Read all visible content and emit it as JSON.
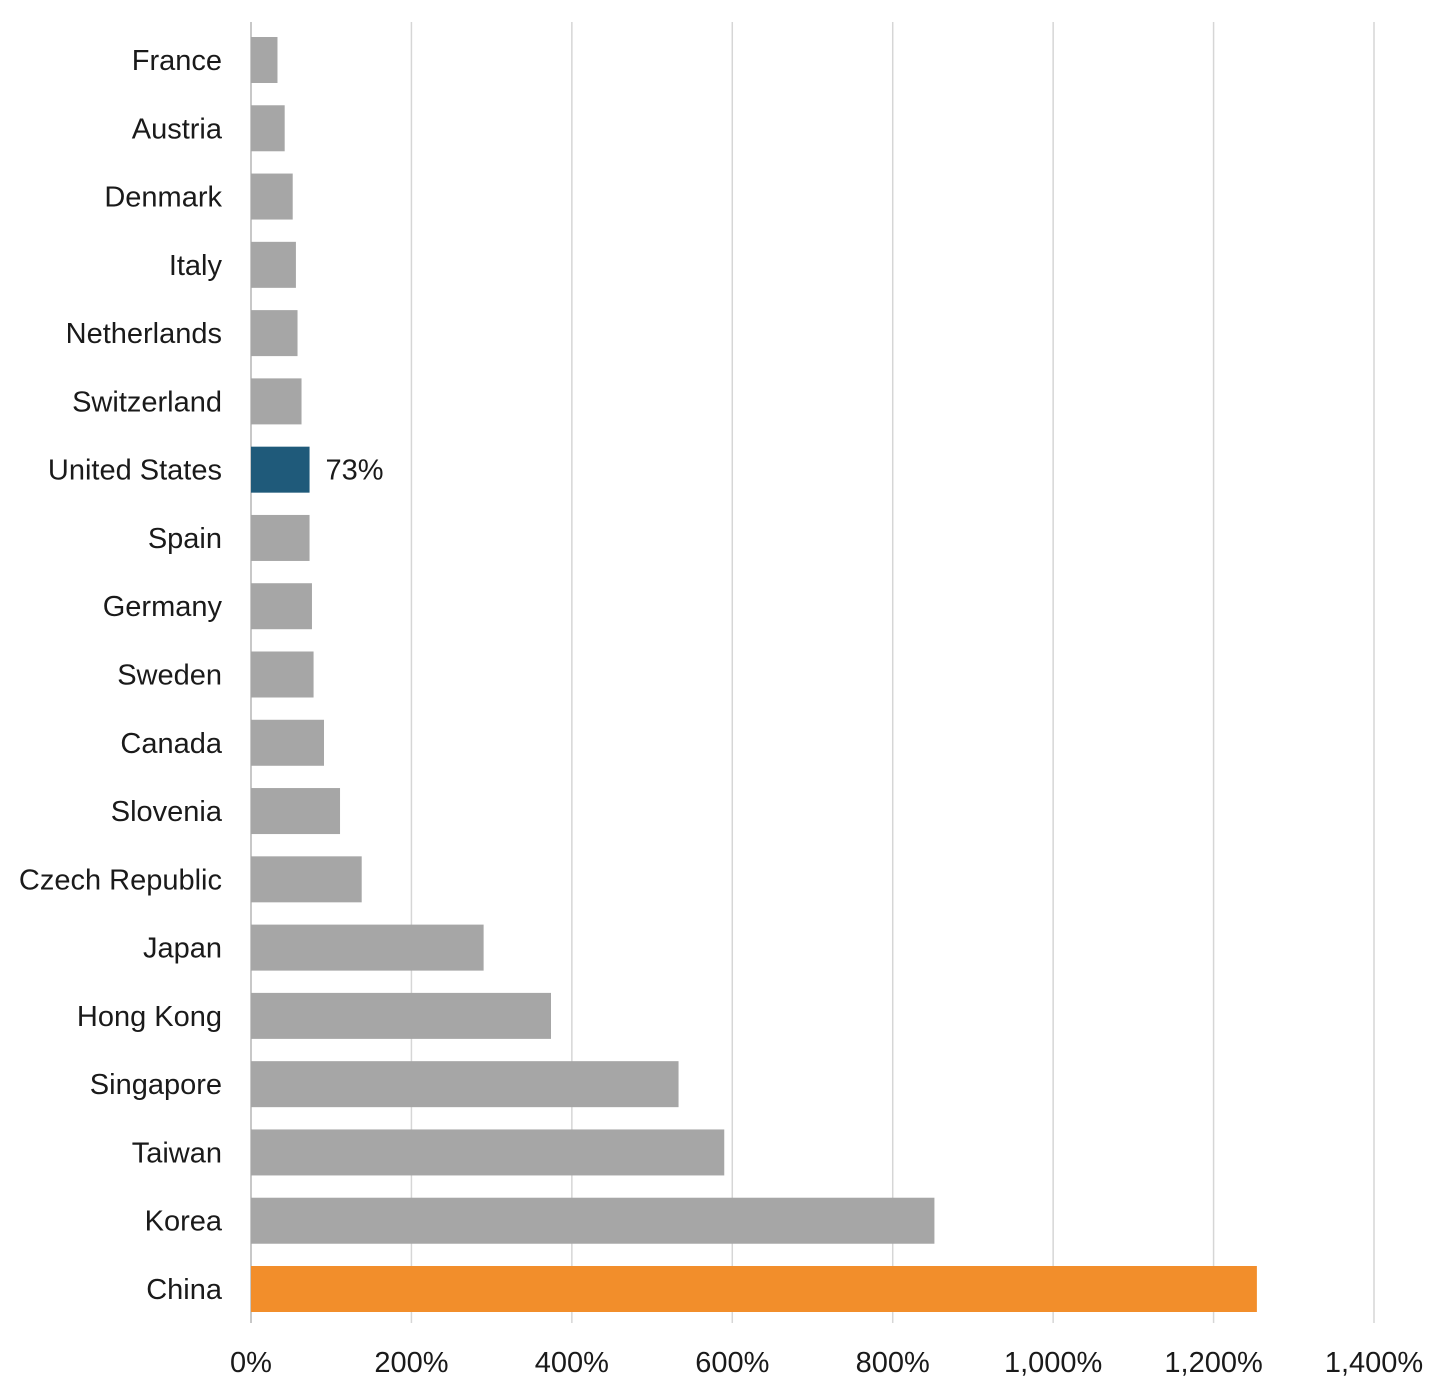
{
  "chart_data": {
    "type": "bar",
    "orientation": "horizontal",
    "title": "",
    "xlabel": "",
    "ylabel": "",
    "categories": [
      "France",
      "Austria",
      "Denmark",
      "Italy",
      "Netherlands",
      "Switzerland",
      "United States",
      "Spain",
      "Germany",
      "Sweden",
      "Canada",
      "Slovenia",
      "Czech Republic",
      "Japan",
      "Hong Kong",
      "Singapore",
      "Taiwan",
      "Korea",
      "China"
    ],
    "values": [
      33,
      42,
      52,
      56,
      58,
      63,
      73,
      73,
      76,
      78,
      91,
      111,
      138,
      290,
      374,
      533,
      590,
      852,
      1254
    ],
    "xlim": [
      0,
      1400
    ],
    "xticks": [
      0,
      200,
      400,
      600,
      800,
      1000,
      1200,
      1400
    ],
    "xtick_labels": [
      "0%",
      "200%",
      "400%",
      "600%",
      "800%",
      "1,000%",
      "1,200%",
      "1,400%"
    ],
    "grid": "vertical",
    "legend": "none",
    "data_labels": [
      {
        "category": "United States",
        "text": "73%"
      }
    ],
    "colors": {
      "default": "#a6a6a6",
      "United States": "#1f5a7a",
      "China": "#f28e2b"
    }
  }
}
